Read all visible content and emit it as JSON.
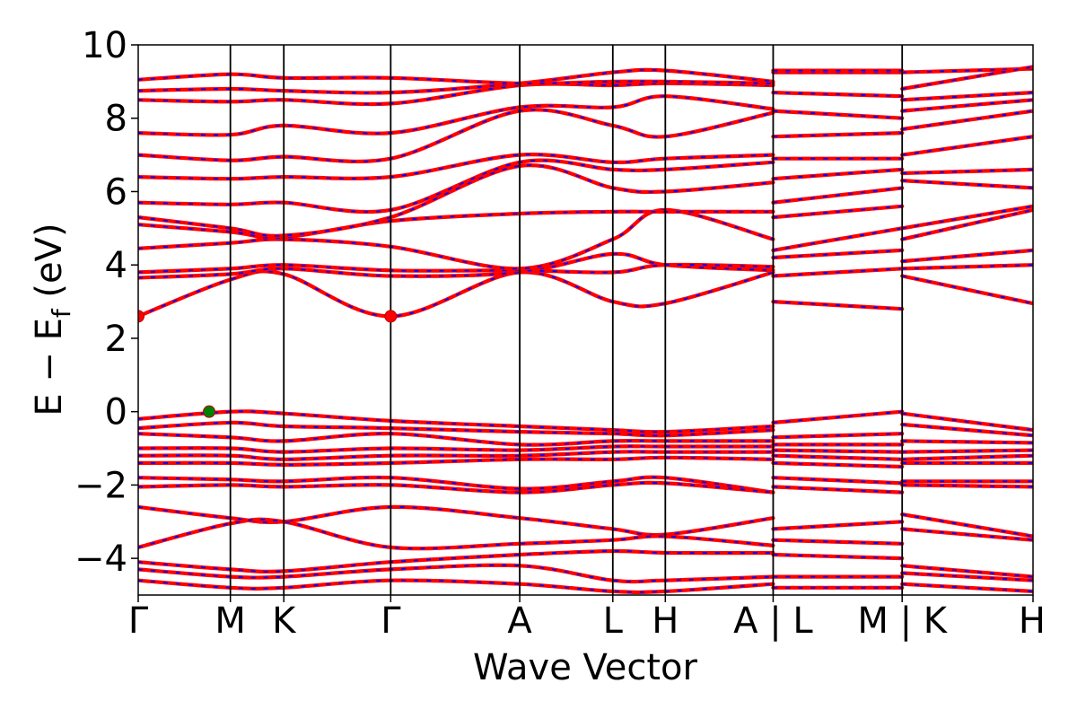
{
  "chart_data": {
    "type": "line",
    "title": "",
    "xlabel": "Wave Vector",
    "ylabel": "E − E_f (eV)",
    "ylabel_parts": {
      "lead": "E − E",
      "sub": "f",
      "tail": " (eV)"
    },
    "ylim": [
      -5,
      10
    ],
    "yticks": [
      -4,
      -2,
      0,
      2,
      4,
      6,
      8,
      10
    ],
    "ytick_labels": [
      "−4",
      "−2",
      "0",
      "2",
      "4",
      "6",
      "8",
      "10"
    ],
    "grid": false,
    "k_path": {
      "positions": [
        0,
        1,
        1.58,
        2.74,
        4.14,
        5.15,
        5.72,
        6.89,
        8.29,
        9.71
      ],
      "labels": [
        "Γ",
        "M",
        "K",
        "Γ",
        "A",
        "L",
        "H",
        "A | L",
        "M | K",
        "H"
      ],
      "segment_breaks": [
        6.89,
        8.29
      ]
    },
    "special_points": [
      {
        "name": "CBM",
        "x": 0,
        "y": 2.6,
        "color": "#ff0000"
      },
      {
        "name": "CBM",
        "x": 2.74,
        "y": 2.6,
        "color": "#ff0000"
      },
      {
        "name": "VBM",
        "x": 0.77,
        "y": 0.0,
        "color": "#008000"
      }
    ],
    "band_style": {
      "primary": "#ff0000",
      "secondary": "#0000ff"
    },
    "bands": [
      {
        "y": [
          2.6,
          3.6,
          3.75,
          2.6,
          3.8,
          3.0,
          2.95,
          3.8,
          3.0,
          2.8,
          3.7,
          2.95
        ]
      },
      {
        "y": [
          3.65,
          3.75,
          3.9,
          3.7,
          3.8,
          4.3,
          4.0,
          3.85,
          3.7,
          3.9,
          3.9,
          4.0
        ]
      },
      {
        "y": [
          3.8,
          3.9,
          4.0,
          3.85,
          3.85,
          3.8,
          4.0,
          3.95,
          4.2,
          4.4,
          4.1,
          4.4
        ]
      },
      {
        "y": [
          4.45,
          4.6,
          4.7,
          4.5,
          3.9,
          4.7,
          5.5,
          4.7,
          4.4,
          5.0,
          4.7,
          5.5
        ]
      },
      {
        "y": [
          5.1,
          4.9,
          4.75,
          5.2,
          5.4,
          5.45,
          5.45,
          5.45,
          5.3,
          5.6,
          5.0,
          5.6
        ]
      },
      {
        "y": [
          5.3,
          5.0,
          4.8,
          5.3,
          6.7,
          6.1,
          6.0,
          6.25,
          5.7,
          6.1,
          6.3,
          6.1
        ]
      },
      {
        "y": [
          5.7,
          5.65,
          5.7,
          5.5,
          6.8,
          6.6,
          6.6,
          6.8,
          6.35,
          6.6,
          6.5,
          6.6
        ]
      },
      {
        "y": [
          6.4,
          6.35,
          6.4,
          6.4,
          7.0,
          6.8,
          6.9,
          7.0,
          6.9,
          6.9,
          7.0,
          7.5
        ]
      },
      {
        "y": [
          7.0,
          6.85,
          6.95,
          6.9,
          8.2,
          7.8,
          7.5,
          8.15,
          7.5,
          7.6,
          7.7,
          8.2
        ]
      },
      {
        "y": [
          7.6,
          7.55,
          7.8,
          7.6,
          8.3,
          8.3,
          8.6,
          8.25,
          8.2,
          8.0,
          8.2,
          8.5
        ]
      },
      {
        "y": [
          8.5,
          8.45,
          8.5,
          8.4,
          8.9,
          8.9,
          8.95,
          8.9,
          8.7,
          8.6,
          8.5,
          8.7
        ]
      },
      {
        "y": [
          8.75,
          8.8,
          8.75,
          8.7,
          8.95,
          9.25,
          9.3,
          9.0,
          9.25,
          9.25,
          9.25,
          9.35
        ]
      },
      {
        "y": [
          9.05,
          9.2,
          9.1,
          9.1,
          8.95,
          9.0,
          9.0,
          8.95,
          9.3,
          9.3,
          8.8,
          9.4
        ]
      },
      {
        "y": [
          -0.2,
          0.0,
          -0.05,
          -0.25,
          -0.4,
          -0.5,
          -0.55,
          -0.4,
          -0.3,
          0.0,
          -0.05,
          -0.5
        ]
      },
      {
        "y": [
          -0.45,
          -0.3,
          -0.4,
          -0.45,
          -0.55,
          -0.6,
          -0.65,
          -0.5,
          -0.7,
          -0.6,
          -0.35,
          -0.65
        ]
      },
      {
        "y": [
          -0.6,
          -0.7,
          -0.8,
          -0.6,
          -0.9,
          -0.8,
          -0.8,
          -0.8,
          -0.9,
          -0.9,
          -0.8,
          -0.85
        ]
      },
      {
        "y": [
          -1.0,
          -1.0,
          -1.1,
          -1.0,
          -1.05,
          -0.95,
          -0.95,
          -0.95,
          -1.05,
          -1.1,
          -1.1,
          -1.05
        ]
      },
      {
        "y": [
          -1.2,
          -1.2,
          -1.3,
          -1.2,
          -1.2,
          -1.1,
          -1.1,
          -1.1,
          -1.2,
          -1.3,
          -1.3,
          -1.2
        ]
      },
      {
        "y": [
          -1.4,
          -1.4,
          -1.45,
          -1.4,
          -1.3,
          -1.3,
          -1.25,
          -1.3,
          -1.4,
          -1.5,
          -1.4,
          -1.4
        ]
      },
      {
        "y": [
          -1.8,
          -1.85,
          -1.9,
          -1.8,
          -2.1,
          -1.9,
          -1.8,
          -2.2,
          -1.8,
          -1.95,
          -1.9,
          -1.9
        ]
      },
      {
        "y": [
          -2.05,
          -2.0,
          -2.05,
          -2.0,
          -2.2,
          -2.0,
          -1.95,
          -2.2,
          -2.05,
          -2.2,
          -2.0,
          -2.05
        ]
      },
      {
        "y": [
          -2.6,
          -2.9,
          -3.0,
          -2.6,
          -2.9,
          -3.2,
          -3.35,
          -2.9,
          -3.2,
          -3.0,
          -2.8,
          -3.4
        ]
      },
      {
        "y": [
          -3.7,
          -3.05,
          -3.0,
          -3.7,
          -3.6,
          -3.5,
          -3.4,
          -3.65,
          -3.5,
          -3.6,
          -3.2,
          -3.5
        ]
      },
      {
        "y": [
          -4.1,
          -4.3,
          -4.35,
          -4.1,
          -3.9,
          -3.8,
          -3.85,
          -3.85,
          -3.9,
          -4.0,
          -4.2,
          -4.5
        ]
      },
      {
        "y": [
          -4.3,
          -4.5,
          -4.5,
          -4.3,
          -4.2,
          -4.6,
          -4.6,
          -4.5,
          -4.5,
          -4.5,
          -4.4,
          -4.6
        ]
      },
      {
        "y": [
          -4.6,
          -4.8,
          -4.8,
          -4.6,
          -4.7,
          -4.9,
          -4.9,
          -4.7,
          -4.8,
          -4.8,
          -4.7,
          -4.9
        ]
      }
    ]
  }
}
